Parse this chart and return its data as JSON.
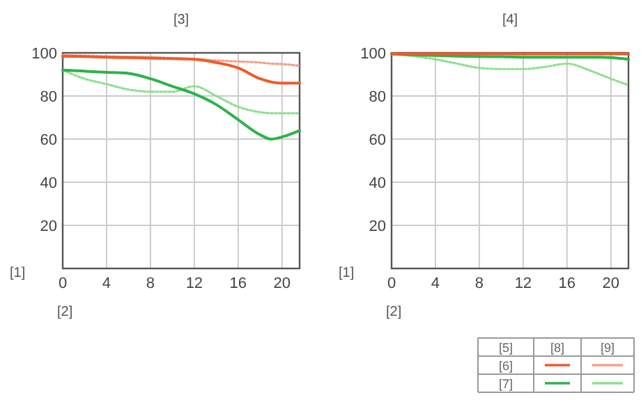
{
  "chart_data": [
    {
      "type": "line",
      "title": "[3]",
      "xlabel": "[2]",
      "ylabel": "[1]",
      "x": [
        0,
        2,
        4,
        6,
        8,
        10,
        12,
        14,
        16,
        18,
        19,
        20,
        21.6
      ],
      "xlim": [
        0,
        21.6
      ],
      "xticks": [
        0,
        4,
        8,
        12,
        16,
        20
      ],
      "ylim": [
        0,
        100
      ],
      "yticks": [
        {
          "value": 0,
          "label": null
        },
        20,
        40,
        60,
        80,
        100
      ],
      "grid": true,
      "series": [
        {
          "color": "#f5a08a",
          "line_style": "dotted",
          "values": [
            99,
            98.7,
            98.4,
            98.2,
            98,
            97.6,
            97.2,
            96.5,
            96,
            95.5,
            95,
            94.8,
            94
          ]
        },
        {
          "color": "#f05a28",
          "line_style": "solid",
          "values": [
            98.5,
            98.3,
            98,
            97.8,
            97.6,
            97.3,
            97,
            95.5,
            93,
            88,
            86.5,
            86,
            86
          ]
        },
        {
          "color": "#8de08f",
          "line_style": "dotted",
          "values": [
            92,
            88,
            85.5,
            83,
            82,
            82,
            84.5,
            80,
            75,
            72.5,
            72,
            72,
            72
          ]
        },
        {
          "color": "#2cb34a",
          "line_style": "solid",
          "values": [
            92,
            91.5,
            91,
            90.5,
            88,
            84.5,
            81,
            76,
            69,
            62,
            60,
            61,
            64
          ]
        }
      ]
    },
    {
      "type": "line",
      "title": "[4]",
      "xlabel": "[2]",
      "ylabel": "[1]",
      "x": [
        0,
        2,
        4,
        6,
        8,
        10,
        12,
        14,
        16,
        18,
        19,
        20,
        21.6
      ],
      "xlim": [
        0,
        21.6
      ],
      "xticks": [
        0,
        4,
        8,
        12,
        16,
        20
      ],
      "ylim": [
        0,
        100
      ],
      "yticks": [
        {
          "value": 0,
          "label": null
        },
        20,
        40,
        60,
        80,
        100
      ],
      "grid": true,
      "annotations": [
        "[5]",
        "[6]",
        "[7]",
        "[8]",
        "[9]"
      ],
      "series": [
        {
          "color": "#8de08f",
          "line_style": "dotted",
          "values": [
            99.5,
            98.5,
            97,
            95,
            93,
            92.5,
            92.5,
            93.5,
            95,
            92,
            90,
            88,
            85
          ]
        },
        {
          "color": "#2cb34a",
          "line_style": "solid",
          "values": [
            99.5,
            99,
            98.8,
            98.5,
            98.3,
            98.2,
            98,
            98,
            98,
            98,
            98,
            97.8,
            97
          ]
        },
        {
          "color": "#f5a08a",
          "line_style": "dotted",
          "values": [
            null,
            null,
            null,
            null,
            null,
            null,
            null,
            null,
            null,
            null,
            null,
            null,
            null
          ]
        },
        {
          "color": "#f05a28",
          "line_style": "solid",
          "values": [
            99.5,
            99.5,
            99.5,
            99.5,
            99.5,
            99.5,
            99.5,
            99.5,
            99.5,
            99.5,
            99.5,
            99.5,
            99.5
          ]
        }
      ]
    }
  ]
}
